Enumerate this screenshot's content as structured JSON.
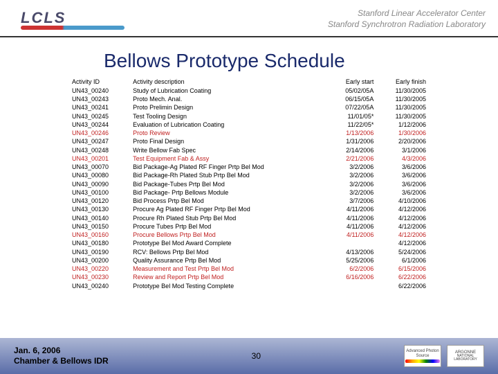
{
  "header": {
    "logo_text": "LCLS",
    "right_line1": "Stanford Linear Accelerator Center",
    "right_line2": "Stanford Synchrotron Radiation Laboratory"
  },
  "title": "Bellows Prototype Schedule",
  "table": {
    "headers": [
      "Activity ID",
      "Activity description",
      "Early start",
      "Early finish"
    ],
    "rows": [
      {
        "id": "UN43_00240",
        "desc": "Study of Lubrication Coating",
        "start": "05/02/05A",
        "finish": "11/30/2005",
        "hl": false
      },
      {
        "id": "UN43_00243",
        "desc": "Proto Mech. Anal.",
        "start": "06/15/05A",
        "finish": "11/30/2005",
        "hl": false
      },
      {
        "id": "UN43_00241",
        "desc": "Proto Prelimin Design",
        "start": "07/22/05A",
        "finish": "11/30/2005",
        "hl": false
      },
      {
        "id": "UN43_00245",
        "desc": "Test Tooling Design",
        "start": "11/01/05*",
        "finish": "11/30/2005",
        "hl": false
      },
      {
        "id": "UN43_00244",
        "desc": "Evaluation of Lubrication Coating",
        "start": "11/22/05*",
        "finish": "1/12/2006",
        "hl": false
      },
      {
        "id": "UN43_00246",
        "desc": "Proto Review",
        "start": "1/13/2006",
        "finish": "1/30/2006",
        "hl": true
      },
      {
        "id": "UN43_00247",
        "desc": "Proto Final Design",
        "start": "1/31/2006",
        "finish": "2/20/2006",
        "hl": false
      },
      {
        "id": "UN43_00248",
        "desc": "Write Bellow Fab Spec",
        "start": "2/14/2006",
        "finish": "3/1/2006",
        "hl": false
      },
      {
        "id": "UN43_00201",
        "desc": "Test Equipment Fab & Assy",
        "start": "2/21/2006",
        "finish": "4/3/2006",
        "hl": true
      },
      {
        "id": "UN43_00070",
        "desc": "Bid Package-Ag Plated RF Finger Prtp Bel Mod",
        "start": "3/2/2006",
        "finish": "3/6/2006",
        "hl": false
      },
      {
        "id": "UN43_00080",
        "desc": "Bid Package-Rh Plated Stub Prtp Bel Mod",
        "start": "3/2/2006",
        "finish": "3/6/2006",
        "hl": false
      },
      {
        "id": "UN43_00090",
        "desc": "Bid Package-Tubes Prtp Bel Mod",
        "start": "3/2/2006",
        "finish": "3/6/2006",
        "hl": false
      },
      {
        "id": "UN43_00100",
        "desc": "Bid Package- Prtp Bellows Module",
        "start": "3/2/2006",
        "finish": "3/6/2006",
        "hl": false
      },
      {
        "id": "UN43_00120",
        "desc": "Bid Process Prtp Bel Mod",
        "start": "3/7/2006",
        "finish": "4/10/2006",
        "hl": false
      },
      {
        "id": "UN43_00130",
        "desc": "Procure Ag Plated RF Finger Prtp Bel Mod",
        "start": "4/11/2006",
        "finish": "4/12/2006",
        "hl": false
      },
      {
        "id": "UN43_00140",
        "desc": "Procure Rh Plated Stub Prtp Bel Mod",
        "start": "4/11/2006",
        "finish": "4/12/2006",
        "hl": false
      },
      {
        "id": "UN43_00150",
        "desc": "Procure Tubes Prtp Bel Mod",
        "start": "4/11/2006",
        "finish": "4/12/2006",
        "hl": false
      },
      {
        "id": "UN43_00160",
        "desc": "Procure Bellows Prtp Bel Mod",
        "start": "4/11/2006",
        "finish": "4/12/2006",
        "hl": true
      },
      {
        "id": "UN43_00180",
        "desc": "Prototype Bel Mod Award Complete",
        "start": "",
        "finish": "4/12/2006",
        "hl": false
      },
      {
        "id": "UN43_00190",
        "desc": "RCV: Bellows Prtp Bel Mod",
        "start": "4/13/2006",
        "finish": "5/24/2006",
        "hl": false
      },
      {
        "id": "UN43_00200",
        "desc": "Quality Assurance Prtp Bel Mod",
        "start": "5/25/2006",
        "finish": "6/1/2006",
        "hl": false
      },
      {
        "id": "UN43_00220",
        "desc": "Measurement and Test Prtp Bel Mod",
        "start": "6/2/2006",
        "finish": "6/15/2006",
        "hl": true
      },
      {
        "id": "UN43_00230",
        "desc": "Review and Report Prtp Bel Mod",
        "start": "6/16/2006",
        "finish": "6/22/2006",
        "hl": true
      },
      {
        "id": "UN43_00240",
        "desc": "Prototype Bel Mod Testing Complete",
        "start": "",
        "finish": "6/22/2006",
        "hl": false
      }
    ]
  },
  "footer": {
    "date": "Jan. 6, 2006",
    "subtitle": "Chamber & Bellows IDR",
    "page": "30",
    "badge1_line1": "Advanced",
    "badge1_line2": "Photon",
    "badge1_line3": "Source",
    "badge2_line1": "ARGONNE",
    "badge2_line2": "NATIONAL LABORATORY"
  }
}
